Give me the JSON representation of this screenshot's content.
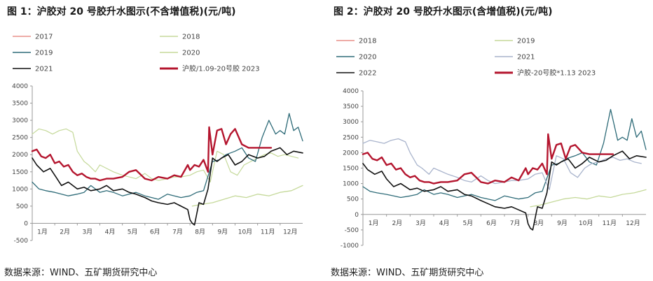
{
  "charts": [
    {
      "title": "图 1：沪胶对 20 号胶升水图示(不含增值税)(元/吨)",
      "source": "数据来源：WIND、五矿期货研究中心",
      "chart_data": {
        "type": "line",
        "ylim": [
          -500,
          4000
        ],
        "yticks": [
          -500,
          0,
          500,
          1000,
          1500,
          2000,
          2500,
          3000,
          3500,
          4000
        ],
        "xlim": [
          0,
          12
        ],
        "xtick_labels": [
          "1月",
          "2月",
          "3月",
          "4月",
          "5月",
          "6月",
          "7月",
          "8月",
          "9月",
          "10月",
          "11月",
          "12月"
        ],
        "grid": false,
        "legend": "top",
        "series": [
          {
            "name": "2017",
            "color": "#e8908a",
            "width": 1.2,
            "x": [],
            "y": []
          },
          {
            "name": "2018",
            "color": "#c5d99a",
            "width": 1.2,
            "x": [
              0,
              0.3,
              0.6,
              0.9,
              1.2,
              1.5,
              1.8,
              2.0,
              2.3,
              2.5,
              2.8,
              3.0,
              3.3,
              3.6,
              4.0,
              4.3,
              4.6,
              5.0,
              5.3,
              5.6,
              6.0,
              6.3,
              6.6,
              7.0,
              7.3,
              7.6,
              7.9,
              8.2,
              8.5,
              8.8,
              9.1,
              9.4,
              9.7,
              10.0,
              10.3,
              10.6,
              10.9,
              11.2,
              11.5,
              11.8
            ],
            "y": [
              2600,
              2750,
              2700,
              2600,
              2700,
              2750,
              2650,
              2100,
              1800,
              1700,
              1500,
              1700,
              1600,
              1500,
              1400,
              1350,
              1300,
              1450,
              1300,
              1250,
              1300,
              1350,
              1350,
              1400,
              1500,
              1550,
              1200,
              2100,
              2000,
              1500,
              1400,
              1700,
              1800,
              1900,
              2000,
              2050,
              1950,
              2000,
              1950,
              1900
            ]
          },
          {
            "name": "2019",
            "color": "#2e6b78",
            "width": 1.3,
            "x": [
              0,
              0.3,
              0.6,
              1.0,
              1.3,
              1.6,
              2.0,
              2.3,
              2.6,
              3.0,
              3.3,
              3.6,
              4.0,
              4.3,
              4.6,
              5.0,
              5.3,
              5.6,
              6.0,
              6.3,
              6.6,
              7.0,
              7.3,
              7.6,
              8.0,
              8.3,
              8.6,
              9.0,
              9.3,
              9.6,
              9.9,
              10.2,
              10.5,
              10.8,
              11.0,
              11.2,
              11.4,
              11.6,
              11.8,
              12.0
            ],
            "y": [
              1200,
              1000,
              950,
              900,
              850,
              800,
              850,
              900,
              1100,
              900,
              950,
              900,
              800,
              850,
              900,
              800,
              750,
              700,
              850,
              800,
              750,
              800,
              900,
              950,
              1800,
              1850,
              2000,
              2100,
              2200,
              1900,
              1800,
              2500,
              3000,
              2600,
              2700,
              2600,
              3200,
              2700,
              2800,
              2400
            ]
          },
          {
            "name": "2020",
            "color": "#c5d99a",
            "width": 1.3,
            "x": [
              7.1,
              7.5,
              8.0,
              8.5,
              9.0,
              9.5,
              10.0,
              10.5,
              11.0,
              11.5,
              12.0
            ],
            "y": [
              500,
              550,
              600,
              700,
              800,
              750,
              850,
              800,
              900,
              950,
              1100
            ]
          },
          {
            "name": "2021",
            "color": "#111111",
            "width": 1.6,
            "x": [
              0,
              0.2,
              0.5,
              0.8,
              1.0,
              1.3,
              1.6,
              2.0,
              2.3,
              2.6,
              3.0,
              3.3,
              3.6,
              4.0,
              4.3,
              4.6,
              5.0,
              5.3,
              5.6,
              6.0,
              6.3,
              6.6,
              6.9,
              7.0,
              7.1,
              7.2,
              7.4,
              7.6,
              7.8,
              8.0,
              8.2,
              8.4,
              8.7,
              9.0,
              9.3,
              9.6,
              10.0,
              10.3,
              10.6,
              11.0,
              11.3,
              11.6,
              12.0
            ],
            "y": [
              1900,
              1700,
              1500,
              1600,
              1400,
              1100,
              1200,
              1000,
              1050,
              950,
              1000,
              1100,
              950,
              1000,
              900,
              850,
              750,
              650,
              600,
              550,
              600,
              500,
              400,
              100,
              0,
              -50,
              600,
              550,
              1000,
              1900,
              1800,
              1900,
              2000,
              1700,
              1800,
              2000,
              1900,
              1950,
              2100,
              2200,
              2000,
              2100,
              2050
            ]
          },
          {
            "name": "沪胶/1.09-20号胶 2023",
            "color": "#b4152e",
            "width": 2.4,
            "x": [
              0,
              0.2,
              0.4,
              0.6,
              0.8,
              1.0,
              1.2,
              1.4,
              1.6,
              1.8,
              2.0,
              2.2,
              2.4,
              2.6,
              2.8,
              3.0,
              3.3,
              3.6,
              4.0,
              4.3,
              4.6,
              5.0,
              5.3,
              5.6,
              6.0,
              6.3,
              6.6,
              6.9,
              7.0,
              7.2,
              7.4,
              7.6,
              7.8,
              7.85,
              8.0,
              8.2,
              8.4,
              8.6,
              8.8,
              9.0,
              9.3,
              9.6,
              10.0,
              10.3,
              10.6
            ],
            "y": [
              2100,
              2150,
              1950,
              1900,
              2000,
              1750,
              1800,
              1650,
              1700,
              1500,
              1400,
              1450,
              1350,
              1300,
              1300,
              1250,
              1300,
              1300,
              1350,
              1500,
              1550,
              1300,
              1250,
              1350,
              1300,
              1400,
              1350,
              1700,
              1550,
              1700,
              1650,
              1850,
              1500,
              2800,
              2000,
              2700,
              2750,
              2300,
              2600,
              2750,
              2300,
              2200,
              2200,
              2200,
              2200
            ]
          }
        ]
      }
    },
    {
      "title": "图 2：沪胶对 20 号胶升水图示(含增值税)(元/吨)",
      "source": "数据来源：WIND、五矿期货研究中心",
      "chart_data": {
        "type": "line",
        "ylim": [
          -1000,
          4000
        ],
        "yticks": [
          -1000,
          -500,
          0,
          500,
          1000,
          1500,
          2000,
          2500,
          3000,
          3500,
          4000
        ],
        "xlim": [
          0,
          12
        ],
        "xtick_labels": [
          "1月",
          "2月",
          "3月",
          "4月",
          "5月",
          "6月",
          "7月",
          "8月",
          "9月",
          "10月",
          "11月",
          "12月"
        ],
        "grid": false,
        "legend": "top",
        "series": [
          {
            "name": "2018",
            "color": "#e8908a",
            "width": 1.2,
            "x": [],
            "y": []
          },
          {
            "name": "2019",
            "color": "#c5d99a",
            "width": 1.3,
            "x": [
              7.1,
              7.5,
              8.0,
              8.5,
              9.0,
              9.5,
              10.0,
              10.5,
              11.0,
              11.5,
              12.0
            ],
            "y": [
              250,
              300,
              400,
              500,
              550,
              500,
              600,
              550,
              650,
              700,
              800
            ]
          },
          {
            "name": "2020",
            "color": "#2e6b78",
            "width": 1.3,
            "x": [
              0,
              0.3,
              0.6,
              1.0,
              1.3,
              1.6,
              2.0,
              2.3,
              2.6,
              3.0,
              3.3,
              3.6,
              4.0,
              4.3,
              4.6,
              5.0,
              5.3,
              5.6,
              6.0,
              6.3,
              6.6,
              7.0,
              7.3,
              7.6,
              8.0,
              8.3,
              8.6,
              9.0,
              9.3,
              9.6,
              9.9,
              10.2,
              10.5,
              10.8,
              11.0,
              11.2,
              11.4,
              11.6,
              11.8,
              12.0
            ],
            "y": [
              900,
              750,
              700,
              650,
              600,
              550,
              600,
              650,
              800,
              650,
              700,
              650,
              550,
              600,
              650,
              550,
              500,
              450,
              600,
              550,
              500,
              550,
              700,
              750,
              1600,
              1650,
              1800,
              1900,
              2000,
              1700,
              1600,
              2300,
              3400,
              2400,
              2500,
              2400,
              3100,
              2500,
              2700,
              2100
            ]
          },
          {
            "name": "2021",
            "color": "#a9b4cc",
            "width": 1.3,
            "x": [
              0,
              0.3,
              0.6,
              0.9,
              1.2,
              1.5,
              1.8,
              2.0,
              2.3,
              2.5,
              2.8,
              3.0,
              3.3,
              3.6,
              4.0,
              4.3,
              4.6,
              5.0,
              5.3,
              5.6,
              6.0,
              6.3,
              6.6,
              7.0,
              7.3,
              7.6,
              7.9,
              8.2,
              8.5,
              8.8,
              9.1,
              9.4,
              9.7,
              10.0,
              10.3,
              10.6,
              10.9,
              11.2,
              11.5,
              11.8
            ],
            "y": [
              2300,
              2400,
              2350,
              2300,
              2400,
              2450,
              2350,
              2000,
              1600,
              1500,
              1300,
              1500,
              1400,
              1300,
              1200,
              1100,
              1050,
              1250,
              1100,
              1000,
              1050,
              1100,
              1100,
              1150,
              1300,
              1350,
              800,
              1900,
              1800,
              1350,
              1200,
              1500,
              1650,
              1700,
              1800,
              1850,
              1750,
              1800,
              1700,
              1650
            ]
          },
          {
            "name": "2022",
            "color": "#111111",
            "width": 1.6,
            "x": [
              0,
              0.2,
              0.5,
              0.8,
              1.0,
              1.3,
              1.6,
              2.0,
              2.3,
              2.6,
              3.0,
              3.3,
              3.6,
              4.0,
              4.3,
              4.6,
              5.0,
              5.3,
              5.6,
              6.0,
              6.3,
              6.6,
              6.9,
              7.0,
              7.1,
              7.2,
              7.4,
              7.6,
              7.8,
              8.0,
              8.2,
              8.4,
              8.7,
              9.0,
              9.3,
              9.6,
              10.0,
              10.3,
              10.6,
              11.0,
              11.3,
              11.6,
              12.0
            ],
            "y": [
              1650,
              1450,
              1300,
              1400,
              1150,
              900,
              1000,
              800,
              850,
              750,
              800,
              900,
              750,
              800,
              650,
              600,
              450,
              350,
              250,
              200,
              250,
              150,
              50,
              -300,
              -450,
              -500,
              250,
              200,
              700,
              1700,
              1600,
              1700,
              1800,
              1500,
              1650,
              1850,
              1700,
              1750,
              1900,
              2050,
              1800,
              1900,
              1850
            ]
          },
          {
            "name": "沪胶-20号胶*1.13 2023",
            "color": "#b4152e",
            "width": 2.4,
            "x": [
              0,
              0.2,
              0.4,
              0.6,
              0.8,
              1.0,
              1.2,
              1.4,
              1.6,
              1.8,
              2.0,
              2.2,
              2.4,
              2.6,
              2.8,
              3.0,
              3.3,
              3.6,
              4.0,
              4.3,
              4.6,
              5.0,
              5.3,
              5.6,
              6.0,
              6.3,
              6.6,
              6.9,
              7.0,
              7.2,
              7.4,
              7.6,
              7.8,
              7.85,
              8.0,
              8.2,
              8.4,
              8.6,
              8.8,
              9.0,
              9.3,
              9.6,
              10.0,
              10.3,
              10.6
            ],
            "y": [
              1950,
              2000,
              1800,
              1750,
              1850,
              1600,
              1650,
              1450,
              1500,
              1300,
              1200,
              1250,
              1100,
              1050,
              1050,
              1000,
              1050,
              1050,
              1100,
              1300,
              1350,
              1050,
              1000,
              1100,
              1050,
              1200,
              1100,
              1500,
              1300,
              1500,
              1450,
              1650,
              1300,
              2600,
              1800,
              2250,
              2300,
              1800,
              2200,
              2250,
              2000,
              1950,
              1950,
              1950,
              1950
            ]
          }
        ]
      }
    }
  ]
}
